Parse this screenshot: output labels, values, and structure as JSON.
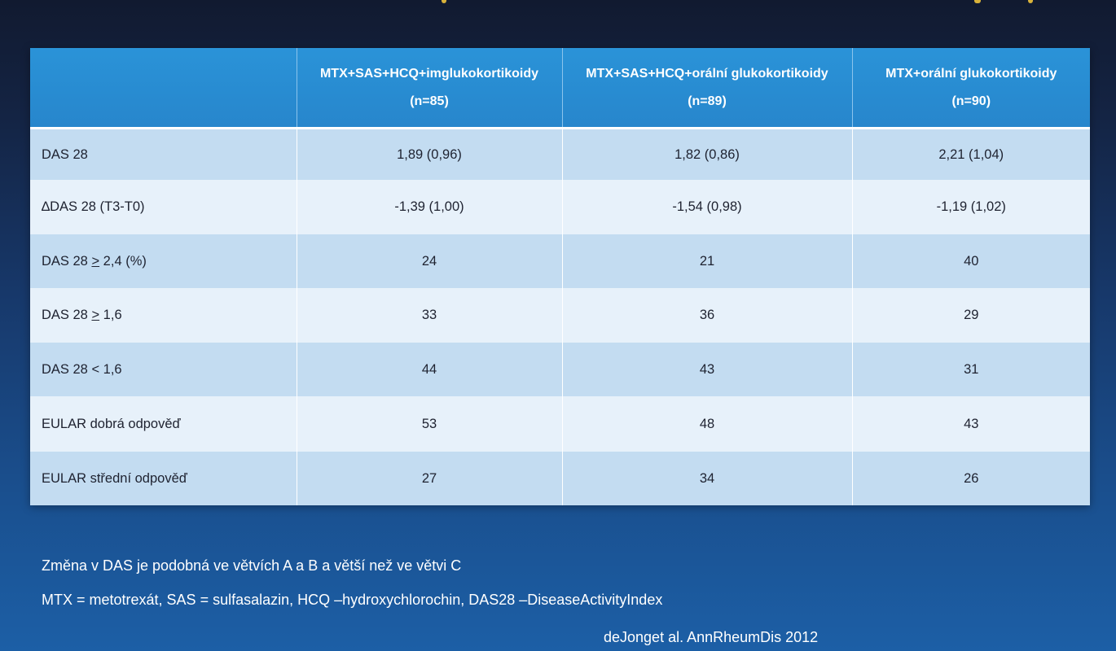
{
  "colors": {
    "background_top": "#111a30",
    "background_bottom": "#1c5fa6",
    "header_blue": "#2786cc",
    "row_alt": "#c3dcf1",
    "row_plain": "#e7f1fa",
    "top_accent": "#d9b23a"
  },
  "table": {
    "headers": [
      {
        "title": "",
        "n": ""
      },
      {
        "title": "MTX+SAS+HCQ+imglukokortikoidy",
        "n": "(n=85)"
      },
      {
        "title": "MTX+SAS+HCQ+orální glukokortikoidy",
        "n": "(n=89)"
      },
      {
        "title": "MTX+orální glukokortikoidy",
        "n": "(n=90)"
      }
    ],
    "rows": [
      {
        "label": "DAS 28",
        "values": [
          "1,89 (0,96)",
          "1,82 (0,86)",
          "2,21 (1,04)"
        ]
      },
      {
        "label": "∆DAS 28 (T3-T0)",
        "values": [
          "-1,39 (1,00)",
          "-1,54 (0,98)",
          "-1,19 (1,02)"
        ]
      },
      {
        "label_prefix": "DAS 28 ",
        "label_sym": ">",
        "label_suffix": " 2,4 (%)",
        "values": [
          "24",
          "21",
          "40"
        ]
      },
      {
        "label_prefix": "DAS 28 ",
        "label_sym": ">",
        "label_suffix": " 1,6",
        "values": [
          "33",
          "36",
          "29"
        ]
      },
      {
        "label": "DAS 28 < 1,6",
        "values": [
          "44",
          "43",
          "31"
        ]
      },
      {
        "label": "EULAR dobrá odpověď",
        "values": [
          "53",
          "48",
          "43"
        ]
      },
      {
        "label": "EULAR střední odpověď",
        "values": [
          "27",
          "34",
          "26"
        ]
      }
    ]
  },
  "notes": {
    "line1": "Změna v DAS je podobná ve větvích A a B a větší než ve větvi C",
    "line2": "MTX = metotrexát, SAS = sulfasalazin, HCQ –hydroxychlorochin, DAS28 –DiseaseActivityIndex"
  },
  "citation": "deJonget al. AnnRheumDis 2012"
}
